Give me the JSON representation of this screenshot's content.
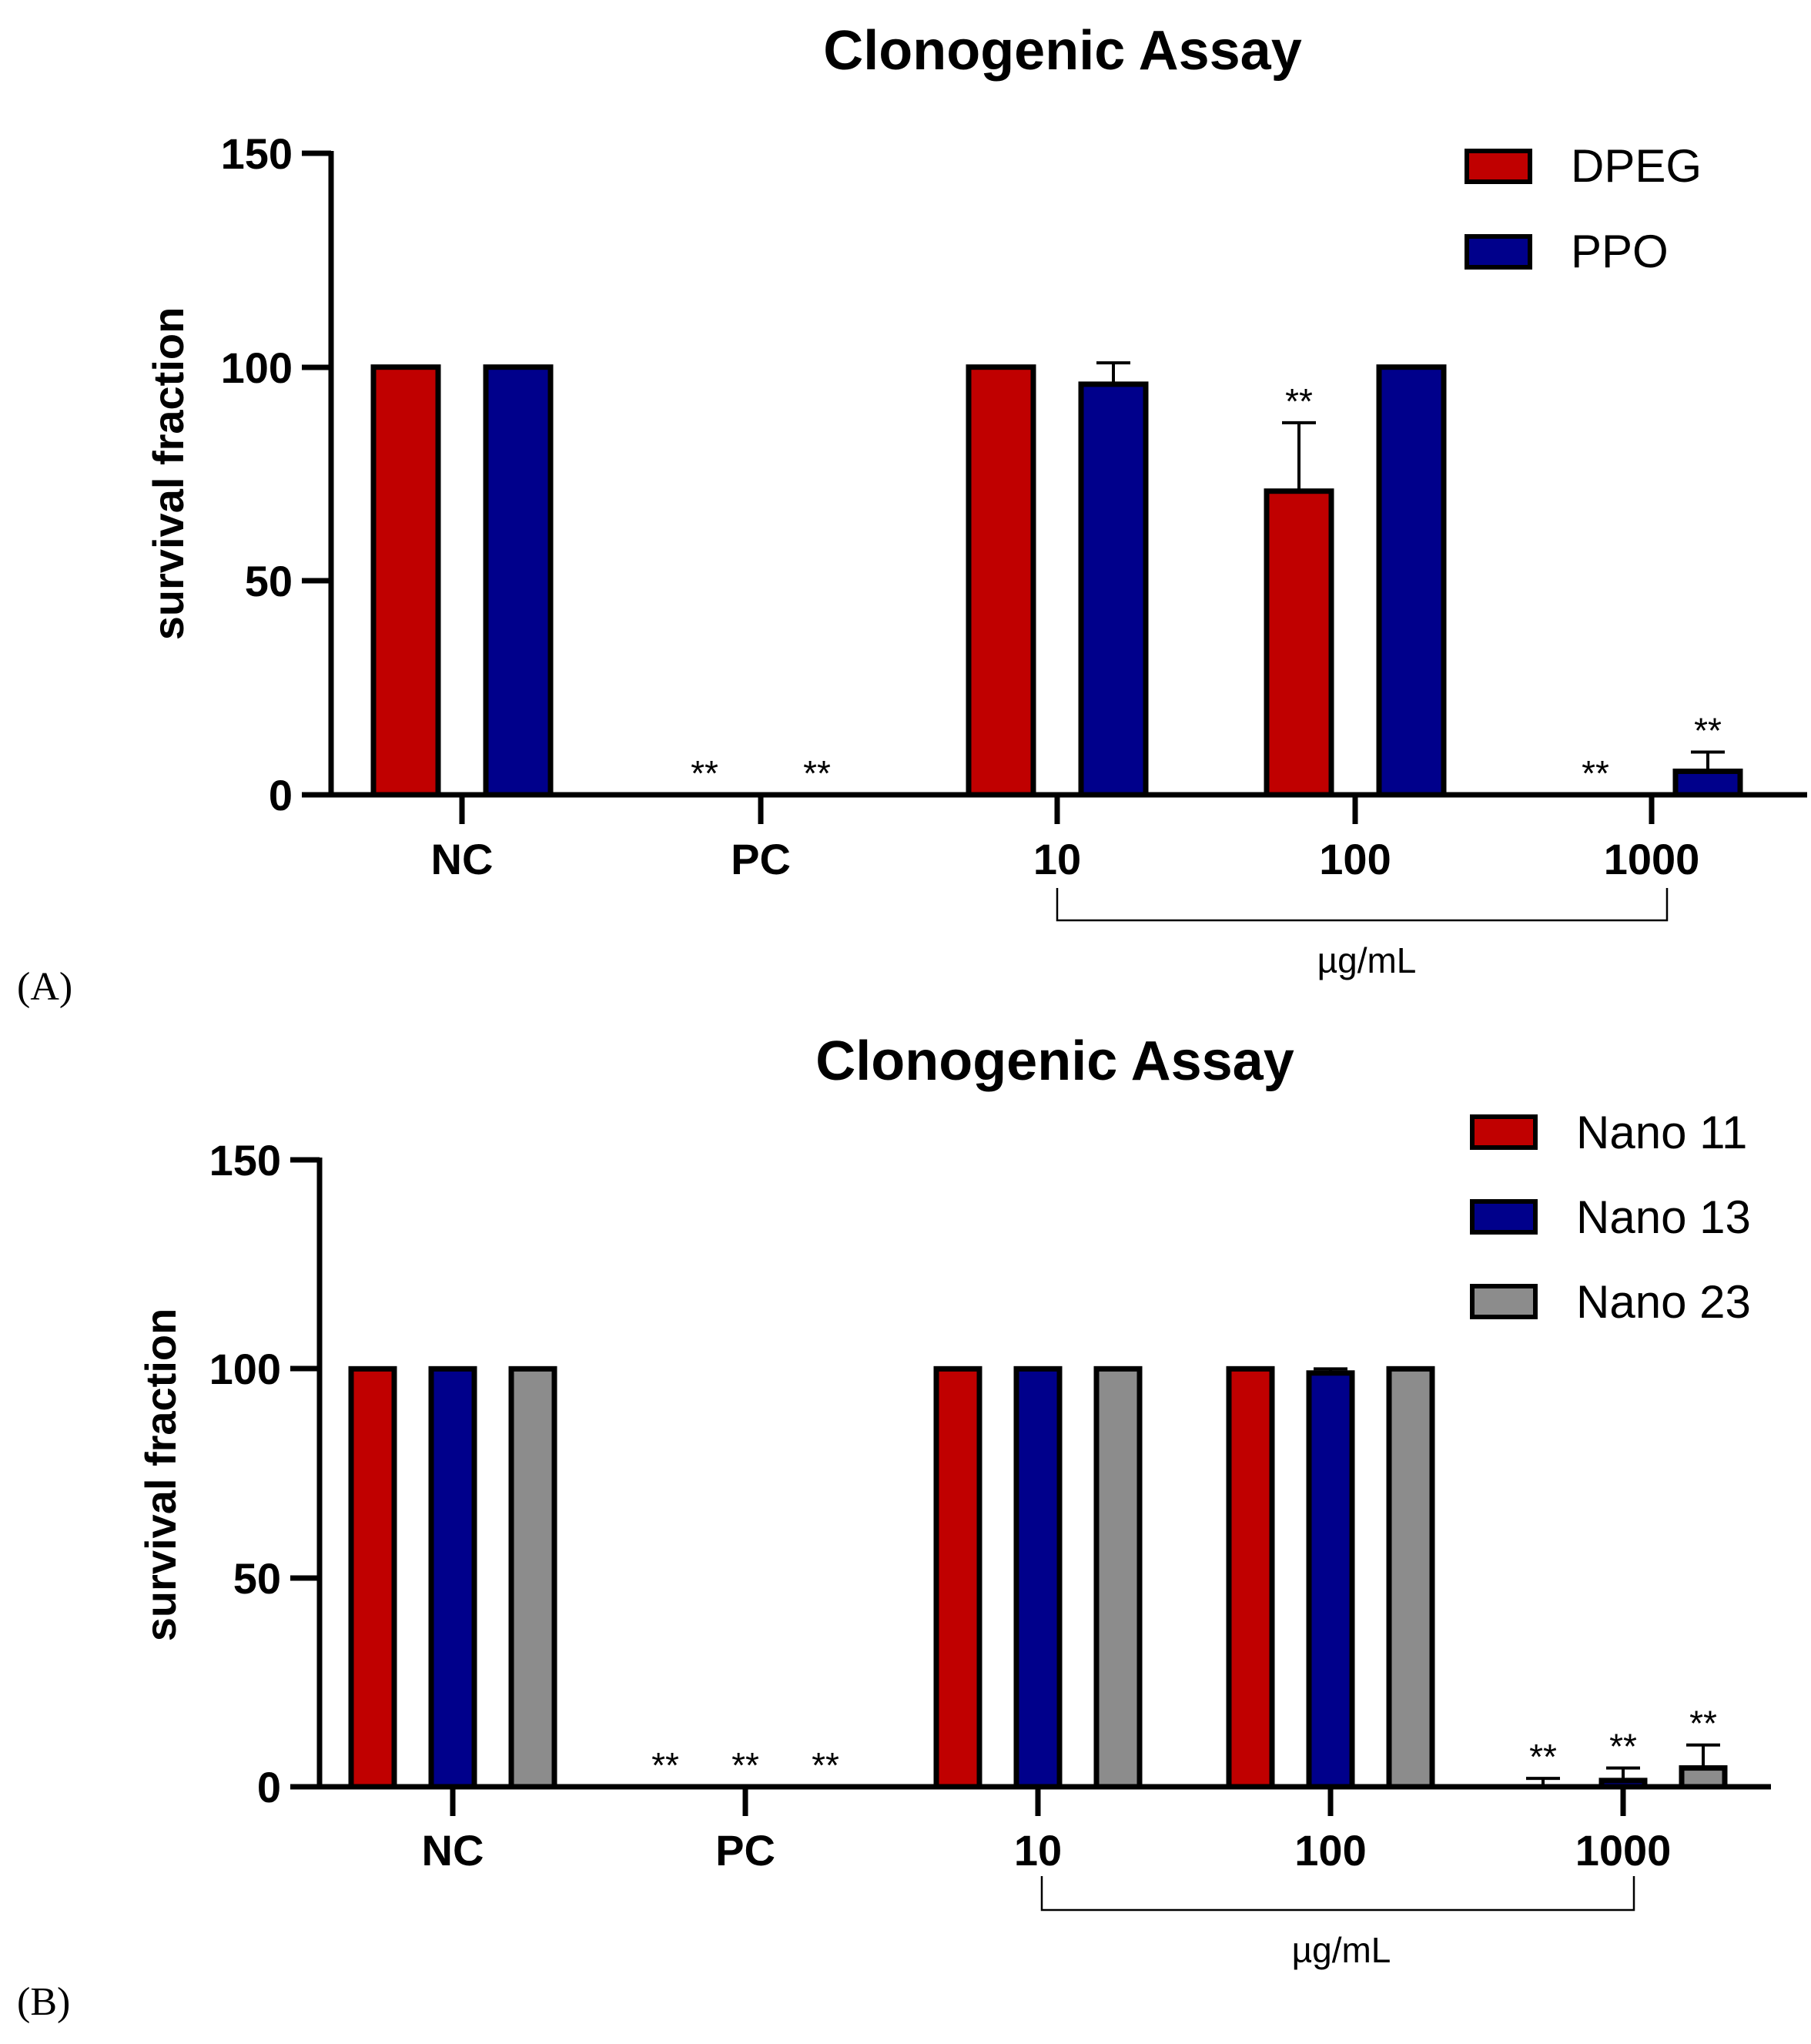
{
  "chart_data": [
    {
      "type": "bar",
      "panel_label": "(A)",
      "title": "Clonogenic Assay",
      "ylabel": "survival fraction",
      "xlabel": "",
      "unit_label": "µg/mL",
      "ylim": [
        0,
        150
      ],
      "yticks": [
        "0",
        "50",
        "100",
        "150"
      ],
      "categories": [
        "NC",
        "PC",
        "10",
        "100",
        "1000"
      ],
      "legend_position": "top-right",
      "grid": false,
      "series": [
        {
          "name": "DPEG",
          "color": "#c00000",
          "values": [
            100,
            0,
            100,
            71,
            0
          ],
          "errors": [
            0,
            0,
            0,
            16,
            0
          ],
          "significance": [
            "",
            "**",
            "",
            "**",
            "**"
          ]
        },
        {
          "name": "PPO",
          "color": "#00008b",
          "values": [
            100,
            0,
            96,
            100,
            5.5
          ],
          "errors": [
            0,
            0,
            5,
            0,
            4.5
          ],
          "significance": [
            "",
            "**",
            "",
            "",
            "**"
          ]
        }
      ]
    },
    {
      "type": "bar",
      "panel_label": "(B)",
      "title": "Clonogenic Assay",
      "ylabel": "survival fraction",
      "xlabel": "",
      "unit_label": "µg/mL",
      "ylim": [
        0,
        150
      ],
      "yticks": [
        "0",
        "50",
        "100",
        "150"
      ],
      "categories": [
        "NC",
        "PC",
        "10",
        "100",
        "1000"
      ],
      "legend_position": "top-right",
      "grid": false,
      "series": [
        {
          "name": "Nano 11",
          "color": "#c00000",
          "values": [
            100,
            0,
            100,
            100,
            0
          ],
          "errors": [
            0,
            0,
            0,
            0,
            2
          ],
          "significance": [
            "",
            "**",
            "",
            "",
            "**"
          ]
        },
        {
          "name": "Nano 13",
          "color": "#00008b",
          "values": [
            100,
            0,
            100,
            99,
            1.5
          ],
          "errors": [
            0,
            0,
            0,
            1,
            3
          ],
          "significance": [
            "",
            "**",
            "",
            "",
            "**"
          ]
        },
        {
          "name": "Nano 23",
          "color": "#8c8c8c",
          "values": [
            100,
            0,
            100,
            100,
            4.5
          ],
          "errors": [
            0,
            0,
            0,
            0,
            5.5
          ],
          "significance": [
            "",
            "**",
            "",
            "",
            "**"
          ]
        }
      ]
    }
  ]
}
